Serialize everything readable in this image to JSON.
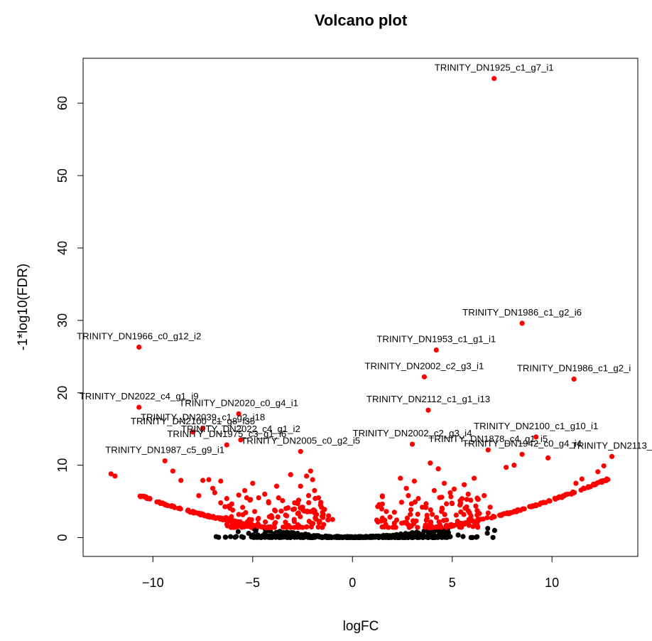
{
  "chart_data": {
    "type": "scatter",
    "title": "Volcano plot",
    "xlabel": "logFC",
    "ylabel": "-1*log10(FDR)",
    "xlim": [
      -13.5,
      14.3
    ],
    "ylim": [
      -2.6,
      66.2
    ],
    "x_ticks": [
      -10,
      -5,
      0,
      5,
      10
    ],
    "y_ticks": [
      0,
      10,
      20,
      30,
      40,
      50,
      60
    ],
    "grid": false,
    "legend": "none",
    "colors": {
      "significant": "#ff0000",
      "not_significant": "#000000"
    },
    "labeled_points": [
      {
        "label": "TRINITY_DN1925_c1_g7_i1",
        "x": 7.1,
        "y": 63.4
      },
      {
        "label": "TRINITY_DN1986_c1_g2_i6",
        "x": 8.5,
        "y": 29.6
      },
      {
        "label": "TRINITY_DN1966_c0_g12_i2",
        "x": -10.7,
        "y": 26.3
      },
      {
        "label": "TRINITY_DN1953_c1_g1_i1",
        "x": 4.2,
        "y": 25.9
      },
      {
        "label": "TRINITY_DN2002_c2_g3_i1",
        "x": 3.6,
        "y": 22.2
      },
      {
        "label": "TRINITY_DN1986_c1_g2_i",
        "x": 11.1,
        "y": 21.9
      },
      {
        "label": "TRINITY_DN2022_c4_g1_i9",
        "x": -10.7,
        "y": 18.0
      },
      {
        "label": "TRINITY_DN2020_c0_g4_i1",
        "x": -5.7,
        "y": 17.1
      },
      {
        "label": "TRINITY_DN2112_c1_g1_i13",
        "x": 3.8,
        "y": 17.6
      },
      {
        "label": "TRINITY_DN2039_c1_g2_i18",
        "x": -7.5,
        "y": 15.1
      },
      {
        "label": "TRINITY_DN2100_c1_g8_i35",
        "x": -8.0,
        "y": 14.6
      },
      {
        "label": "TRINITY_DN2022_c4_g1_i2",
        "x": -5.6,
        "y": 13.5
      },
      {
        "label": "TRINITY_DN1975_c3_g1_i6",
        "x": -6.3,
        "y": 12.8
      },
      {
        "label": "TRINITY_DN2005_c0_g2_i5",
        "x": -2.6,
        "y": 11.9
      },
      {
        "label": "TRINITY_DN2100_c1_g10_i1",
        "x": 9.2,
        "y": 13.9
      },
      {
        "label": "TRINITY_DN2002_c2_g3_i4",
        "x": 3.0,
        "y": 12.9
      },
      {
        "label": "TRINITY_DN1878_c4_g1_i5",
        "x": 6.8,
        "y": 12.1
      },
      {
        "label": "TRINITY_DN1942_c0_g4_i4",
        "x": 8.5,
        "y": 11.5
      },
      {
        "label": "TRINITY_DN2113_",
        "x": 13.0,
        "y": 11.2
      },
      {
        "label": "TRINITY_DN1987_c5_g9_i1",
        "x": -9.4,
        "y": 10.6
      }
    ],
    "significant_points": [
      [
        -12.1,
        8.8
      ],
      [
        -11.9,
        8.5
      ],
      [
        -9.0,
        9.2
      ],
      [
        -8.6,
        7.9
      ],
      [
        -7.5,
        7.9
      ],
      [
        -7.2,
        8.0
      ],
      [
        -7.7,
        5.8
      ],
      [
        -7.0,
        6.8
      ],
      [
        -6.9,
        6.2
      ],
      [
        -6.6,
        7.8
      ],
      [
        -6.3,
        5.4
      ],
      [
        -6.6,
        4.8
      ],
      [
        -5.4,
        6.5
      ],
      [
        -5.3,
        5.5
      ],
      [
        -5.0,
        7.5
      ],
      [
        -4.7,
        5.5
      ],
      [
        -4.4,
        6.0
      ],
      [
        -4.2,
        4.8
      ],
      [
        -3.9,
        3.8
      ],
      [
        -3.5,
        5.1
      ],
      [
        -3.8,
        7.1
      ],
      [
        -3.1,
        8.7
      ],
      [
        -2.9,
        4.8
      ],
      [
        -2.6,
        7.1
      ],
      [
        -2.3,
        8.5
      ],
      [
        -2.1,
        9.2
      ],
      [
        -2.0,
        8.0
      ],
      [
        -1.9,
        6.5
      ],
      [
        -1.7,
        5.5
      ],
      [
        -2.2,
        5.8
      ],
      [
        -2.5,
        4.2
      ],
      [
        -1.6,
        4.5
      ],
      [
        -1.8,
        3.2
      ],
      [
        -1.4,
        3.9
      ],
      [
        -1.2,
        3.0
      ],
      [
        -2.7,
        3.4
      ],
      [
        -3.3,
        3.0
      ],
      [
        -4.9,
        3.6
      ],
      [
        -5.7,
        3.2
      ],
      [
        -6.0,
        3.8
      ],
      [
        2.1,
        3.5
      ],
      [
        2.4,
        8.2
      ],
      [
        2.7,
        6.8
      ],
      [
        2.8,
        5.8
      ],
      [
        3.1,
        7.8
      ],
      [
        3.3,
        5.4
      ],
      [
        3.5,
        4.2
      ],
      [
        3.9,
        10.3
      ],
      [
        4.1,
        6.5
      ],
      [
        4.3,
        9.5
      ],
      [
        4.6,
        7.5
      ],
      [
        4.9,
        6.2
      ],
      [
        5.1,
        6.7
      ],
      [
        5.4,
        4.6
      ],
      [
        5.6,
        7.3
      ],
      [
        5.8,
        6.0
      ],
      [
        6.1,
        8.2
      ],
      [
        6.3,
        5.3
      ],
      [
        6.6,
        5.8
      ],
      [
        6.9,
        4.2
      ],
      [
        7.7,
        9.7
      ],
      [
        8.1,
        10.0
      ],
      [
        9.8,
        11.0
      ],
      [
        12.6,
        9.9
      ],
      [
        12.3,
        9.1
      ],
      [
        11.5,
        8.1
      ],
      [
        11.2,
        7.5
      ],
      [
        2.9,
        3.2
      ],
      [
        1.7,
        3.6
      ],
      [
        1.5,
        2.7
      ],
      [
        4.5,
        4.0
      ],
      [
        6.8,
        3.4
      ],
      [
        3.7,
        2.4
      ],
      [
        5.2,
        3.1
      ],
      [
        -1.0,
        2.5
      ]
    ]
  }
}
